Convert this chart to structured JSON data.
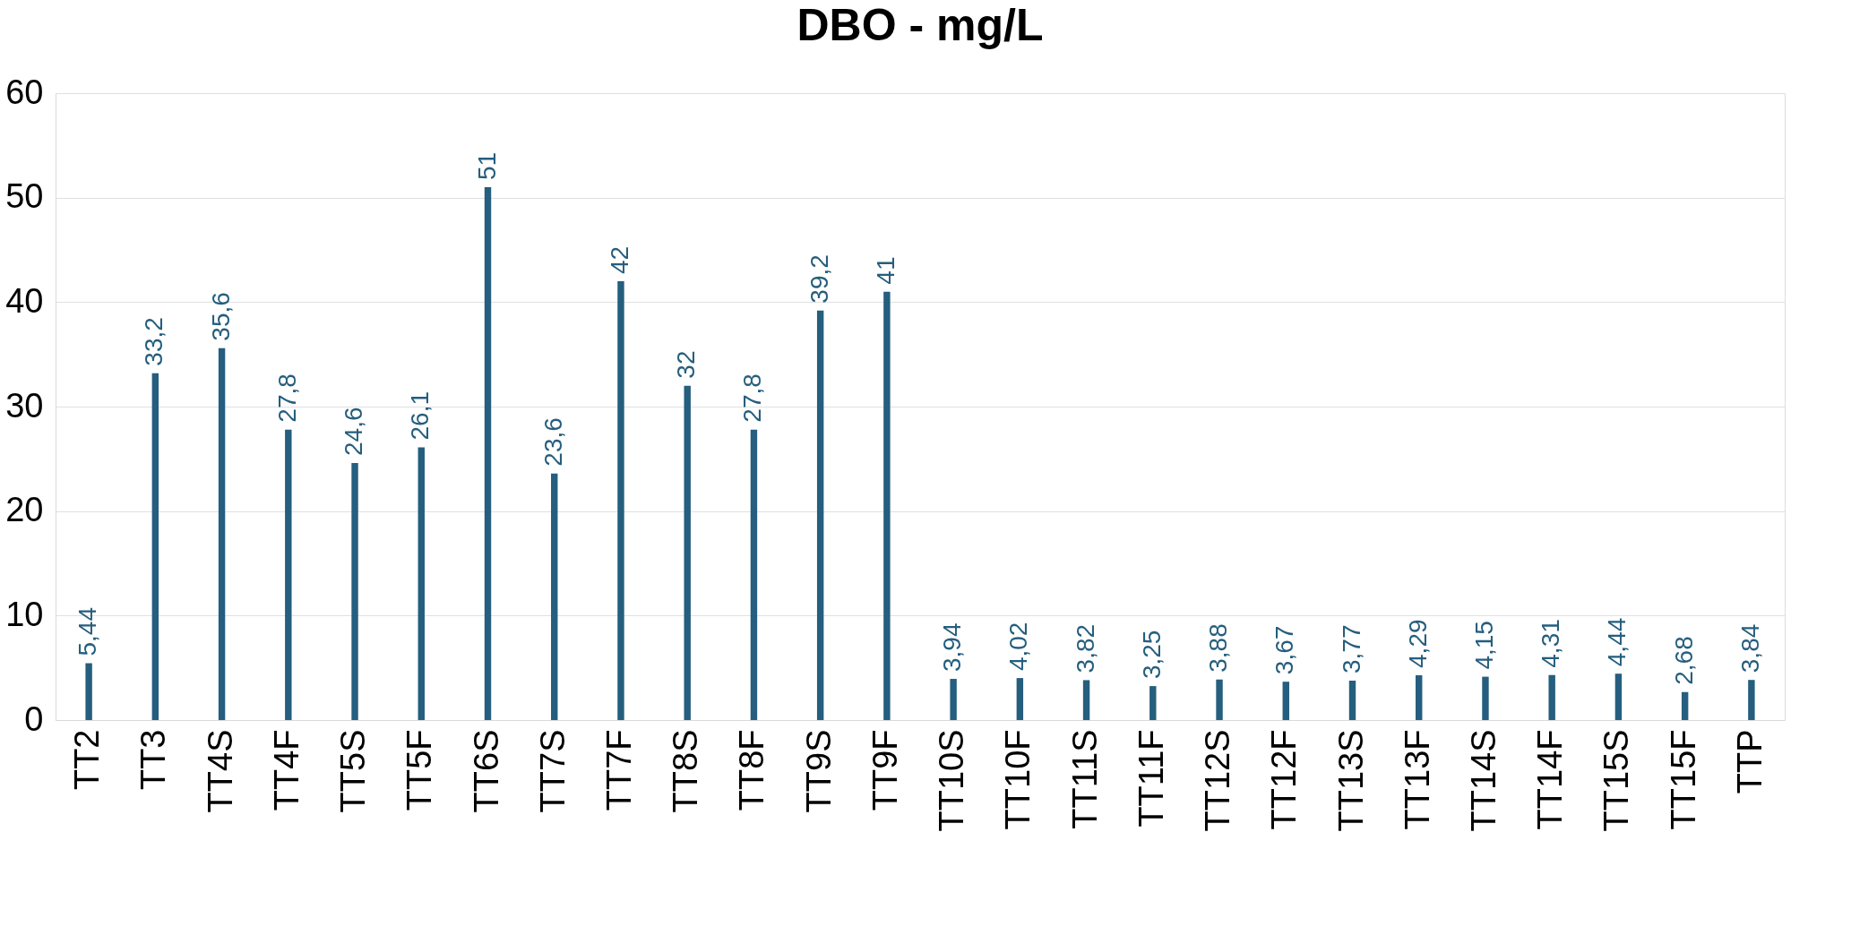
{
  "chart_data": {
    "type": "bar",
    "title": "DBO - mg/L",
    "categories": [
      "TT2",
      "TT3",
      "TT4S",
      "TT4F",
      "TT5S",
      "TT5F",
      "TT6S",
      "TT7S",
      "TT7F",
      "TT8S",
      "TT8F",
      "TT9S",
      "TT9F",
      "TT10S",
      "TT10F",
      "TT11S",
      "TT11F",
      "TT12S",
      "TT12F",
      "TT13S",
      "TT13F",
      "TT14S",
      "TT14F",
      "TT15S",
      "TT15F",
      "TTP"
    ],
    "values": [
      5.44,
      33.2,
      35.6,
      27.8,
      24.6,
      26.1,
      51,
      23.6,
      42,
      32,
      27.8,
      39.2,
      41,
      3.94,
      4.02,
      3.82,
      3.25,
      3.88,
      3.67,
      3.77,
      4.29,
      4.15,
      4.31,
      4.44,
      2.68,
      3.84
    ],
    "value_labels": [
      "5,44",
      "33,2",
      "35,6",
      "27,8",
      "24,6",
      "26,1",
      "51",
      "23,6",
      "42",
      "32",
      "27,8",
      "39,2",
      "41",
      "3,94",
      "4,02",
      "3,82",
      "3,25",
      "3,88",
      "3,67",
      "3,77",
      "4,29",
      "4,15",
      "4,31",
      "4,44",
      "2,68",
      "3,84"
    ],
    "color": "#255e7e",
    "ylim": [
      0,
      60
    ],
    "yticks": [
      0,
      10,
      20,
      30,
      40,
      50,
      60
    ],
    "grid": "y"
  }
}
